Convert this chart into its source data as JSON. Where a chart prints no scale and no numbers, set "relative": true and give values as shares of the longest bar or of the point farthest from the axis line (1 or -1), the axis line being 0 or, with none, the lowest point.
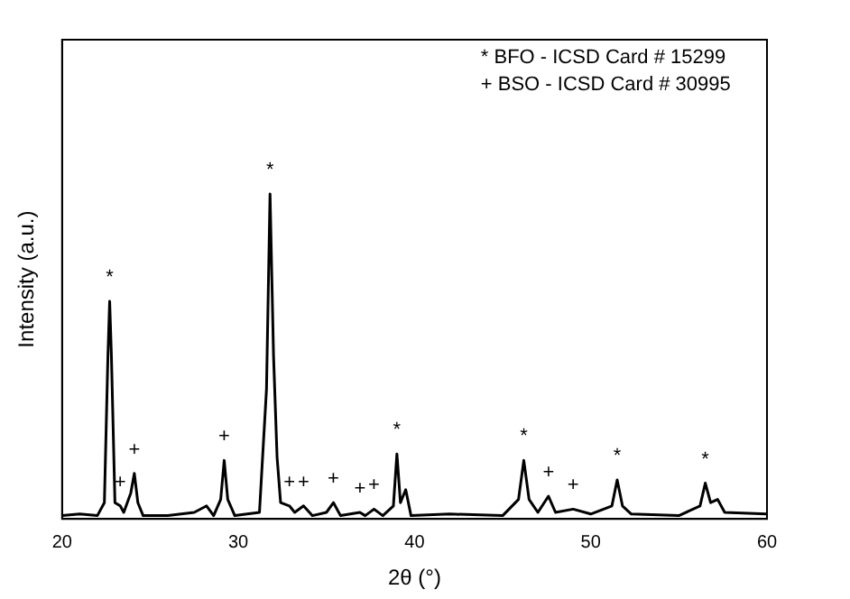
{
  "chart_data": {
    "type": "line",
    "relative": true,
    "xlabel": "2θ (°)",
    "ylabel": "Intensity (a.u.)",
    "xlim": [
      20,
      60
    ],
    "xticks": [
      20,
      30,
      40,
      50,
      60
    ],
    "grid": false,
    "legend": false,
    "marker": "none",
    "line_style": "solid",
    "series": [
      {
        "color": "#000000",
        "x": [
          20,
          21,
          22,
          22.4,
          22.6,
          22.7,
          22.8,
          23.0,
          23.3,
          23.5,
          23.9,
          24.1,
          24.3,
          24.6,
          26,
          27.5,
          28.2,
          28.6,
          29.0,
          29.2,
          29.4,
          29.8,
          31.2,
          31.6,
          31.8,
          32.0,
          32.2,
          32.4,
          32.9,
          33.2,
          33.7,
          34.2,
          35.0,
          35.4,
          35.8,
          36.9,
          37.2,
          37.7,
          38.2,
          38.8,
          39.0,
          39.2,
          39.5,
          39.8,
          42,
          45,
          45.9,
          46.2,
          46.5,
          47.0,
          47.6,
          48,
          49,
          50,
          51.2,
          51.5,
          51.8,
          52.3,
          55,
          56.2,
          56.5,
          56.8,
          57.2,
          57.6,
          60
        ],
        "values": [
          0.01,
          0.015,
          0.01,
          0.05,
          0.5,
          0.67,
          0.5,
          0.05,
          0.04,
          0.02,
          0.08,
          0.14,
          0.05,
          0.01,
          0.01,
          0.02,
          0.04,
          0.01,
          0.06,
          0.18,
          0.06,
          0.01,
          0.02,
          0.4,
          1.0,
          0.5,
          0.19,
          0.05,
          0.04,
          0.02,
          0.04,
          0.01,
          0.02,
          0.05,
          0.01,
          0.02,
          0.01,
          0.03,
          0.01,
          0.04,
          0.2,
          0.05,
          0.09,
          0.01,
          0.015,
          0.01,
          0.06,
          0.18,
          0.06,
          0.02,
          0.07,
          0.02,
          0.03,
          0.015,
          0.04,
          0.12,
          0.04,
          0.015,
          0.01,
          0.04,
          0.11,
          0.05,
          0.06,
          0.02,
          0.015
        ]
      }
    ],
    "annotations": [
      "* BFO - ICSD Card # 15299",
      "+ BSO - ICSD Card # 30995",
      {
        "text": "*",
        "x": 22.7,
        "y": 0.67
      },
      {
        "text": "+",
        "x": 23.3,
        "y": 0.04
      },
      {
        "text": "+",
        "x": 24.1,
        "y": 0.14
      },
      {
        "text": "+",
        "x": 29.2,
        "y": 0.18
      },
      {
        "text": "*",
        "x": 31.8,
        "y": 1.0
      },
      {
        "text": "+",
        "x": 32.9,
        "y": 0.04
      },
      {
        "text": "+",
        "x": 33.7,
        "y": 0.04
      },
      {
        "text": "+",
        "x": 35.4,
        "y": 0.05
      },
      {
        "text": "+",
        "x": 36.9,
        "y": 0.02
      },
      {
        "text": "+",
        "x": 37.7,
        "y": 0.03
      },
      {
        "text": "*",
        "x": 39.0,
        "y": 0.2
      },
      {
        "text": "*",
        "x": 46.2,
        "y": 0.18
      },
      {
        "text": "+",
        "x": 47.6,
        "y": 0.07
      },
      {
        "text": "+",
        "x": 49,
        "y": 0.03
      },
      {
        "text": "*",
        "x": 51.5,
        "y": 0.12
      },
      {
        "text": "*",
        "x": 56.5,
        "y": 0.11
      }
    ]
  }
}
